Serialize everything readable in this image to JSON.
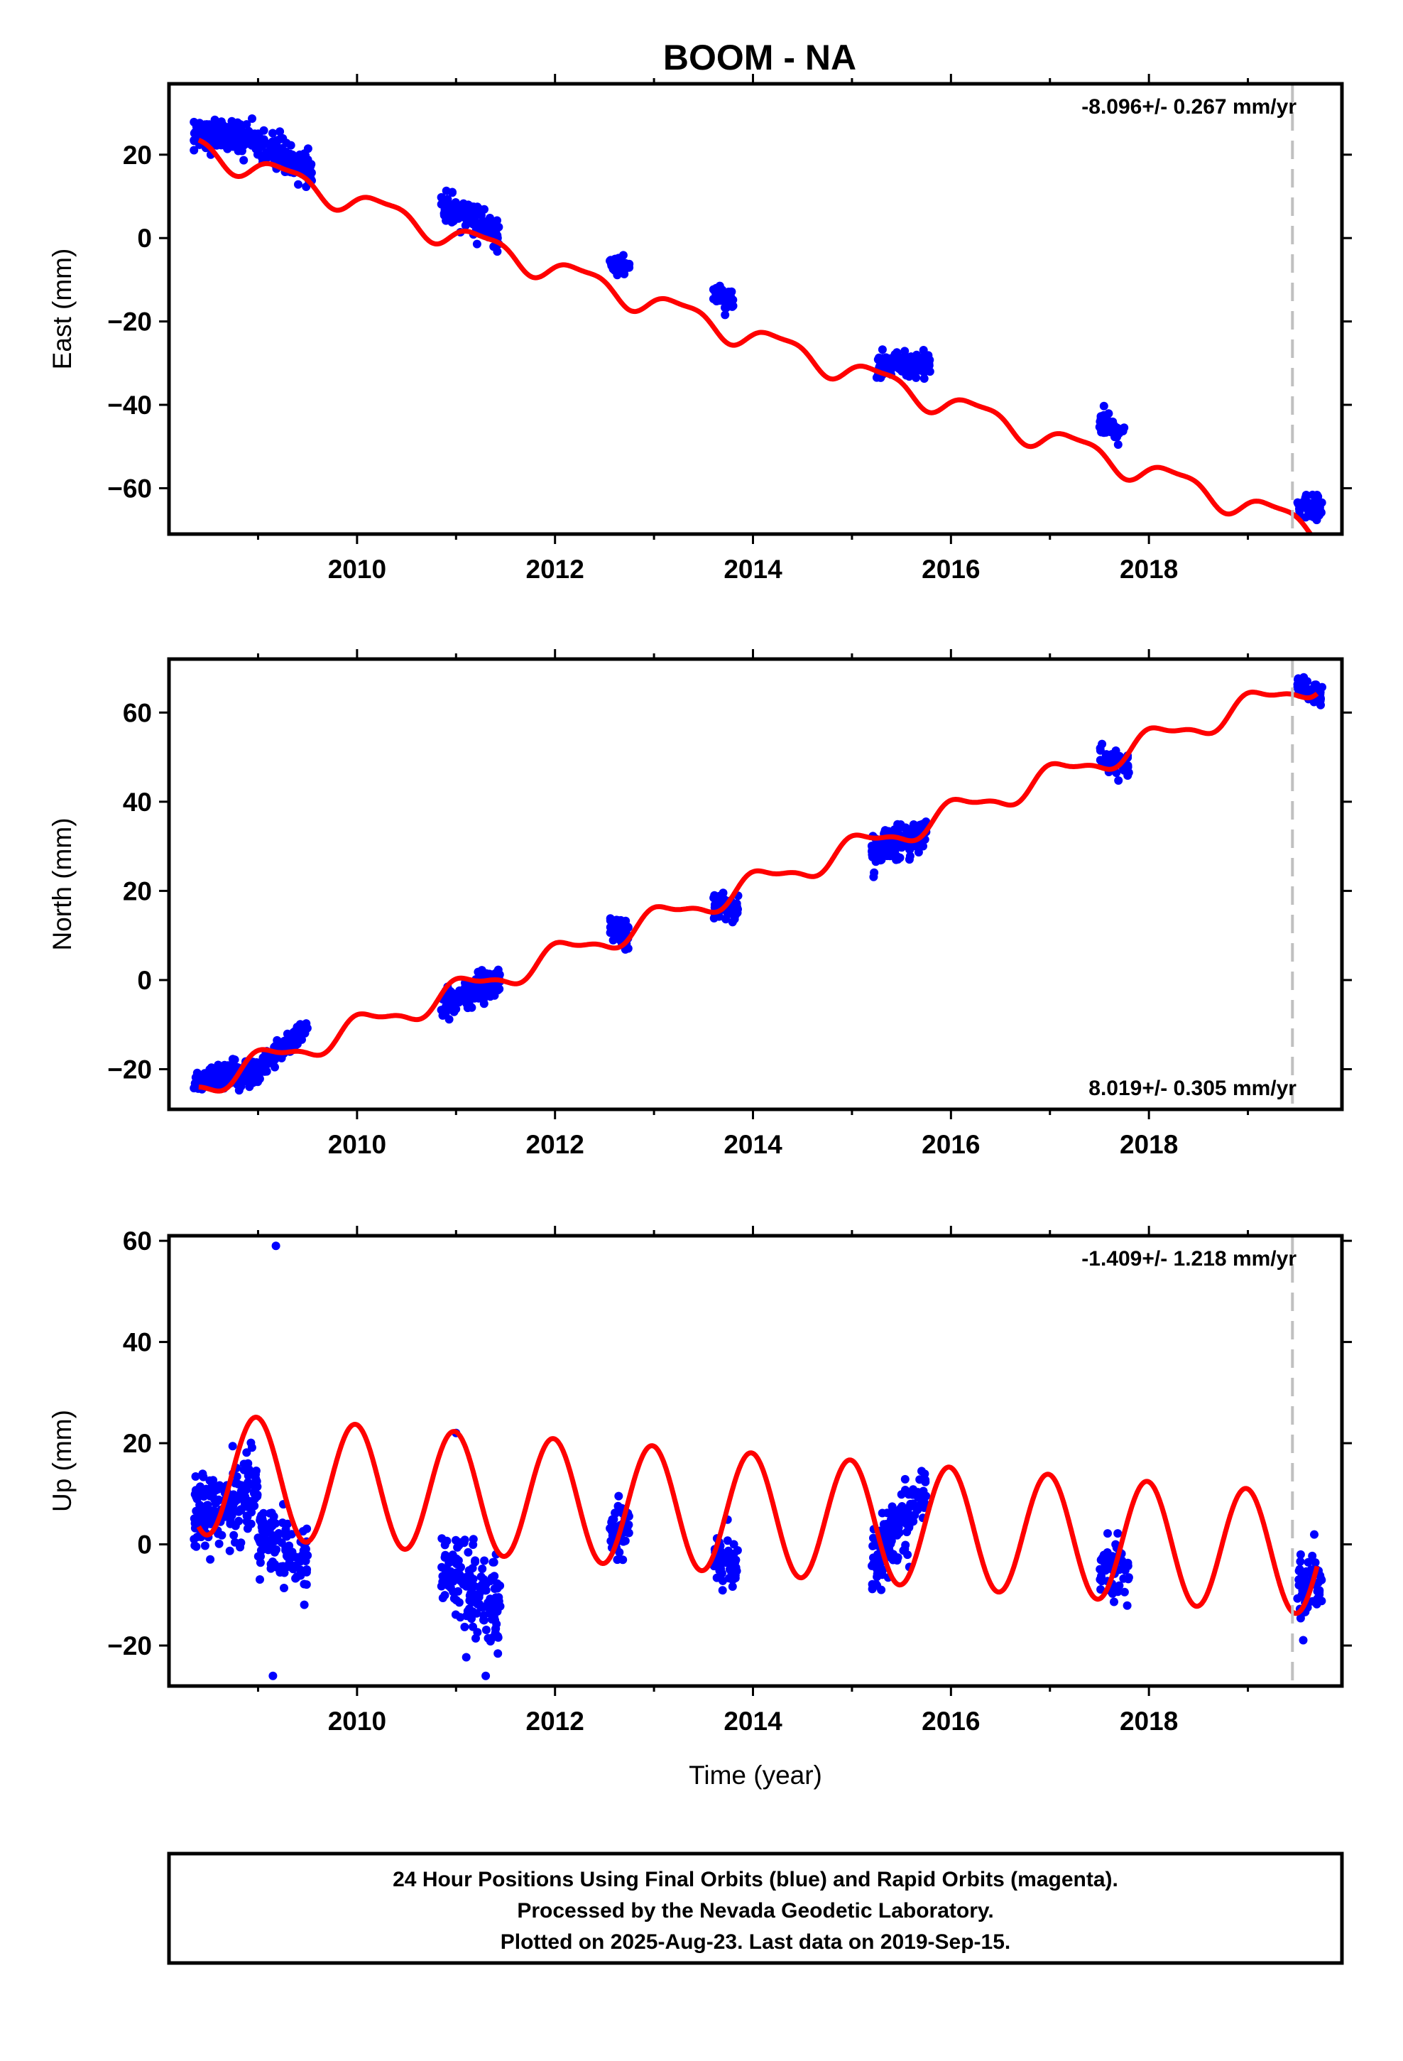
{
  "title": "BOOM - NA",
  "colors": {
    "final_orbits": "#0000ff",
    "model": "#ff0000",
    "frame": "#000000",
    "end_marker": "#c0c0c0"
  },
  "chart_data": [
    {
      "type": "scatter",
      "ylabel": "East (mm)",
      "xlabel": "",
      "xlim": [
        2008.1,
        2019.95
      ],
      "ylim": [
        -71,
        37
      ],
      "xticks": [
        2010,
        2012,
        2014,
        2016,
        2018
      ],
      "xtick_labels": [
        "2010",
        "2012",
        "2014",
        "2016",
        "2018"
      ],
      "yticks": [
        20,
        0,
        -20,
        -40,
        -60
      ],
      "ytick_labels": [
        "20",
        "0",
        "−20",
        "−40",
        "−60"
      ],
      "rate_text": "-8.096+/- 0.267 mm/yr",
      "rate_position": "top-right",
      "end_marker_x": 2019.45,
      "series": [
        {
          "kind": "points",
          "clusters": [
            {
              "x": [
                2008.35,
                2008.85
              ],
              "y_start": 24,
              "y_end": 25,
              "spread": 4,
              "n": 140
            },
            {
              "x": [
                2008.85,
                2009.25
              ],
              "y_start": 25,
              "y_end": 20,
              "spread": 4,
              "n": 100
            },
            {
              "x": [
                2009.25,
                2009.55
              ],
              "y_start": 19,
              "y_end": 16,
              "spread": 4,
              "n": 80
            },
            {
              "x": [
                2010.85,
                2011.45
              ],
              "y_start": 8,
              "y_end": 1,
              "spread": 4,
              "n": 120
            },
            {
              "x": [
                2012.55,
                2012.75
              ],
              "y_start": -6,
              "y_end": -7,
              "spread": 3,
              "n": 50
            },
            {
              "x": [
                2013.6,
                2013.8
              ],
              "y_start": -14,
              "y_end": -15,
              "spread": 3,
              "n": 50
            },
            {
              "x": [
                2015.25,
                2015.8
              ],
              "y_start": -31,
              "y_end": -30,
              "spread": 3,
              "n": 140
            },
            {
              "x": [
                2017.5,
                2017.75
              ],
              "y_start": -44,
              "y_end": -47,
              "spread": 3,
              "n": 50
            },
            {
              "x": [
                2019.5,
                2019.75
              ],
              "y_start": -64,
              "y_end": -65,
              "spread": 3,
              "n": 60
            }
          ]
        },
        {
          "kind": "model",
          "x0": 2008.4,
          "x1": 2019.7,
          "y_at_x0": 23.5,
          "rate": -8.096,
          "annual_amplitude": 2.8,
          "annual_phase": 2.4,
          "semiannual_amplitude": 0.9,
          "semiannual_phase": 0.0
        }
      ]
    },
    {
      "type": "scatter",
      "ylabel": "North (mm)",
      "xlabel": "",
      "xlim": [
        2008.1,
        2019.95
      ],
      "ylim": [
        -29,
        72
      ],
      "xticks": [
        2010,
        2012,
        2014,
        2016,
        2018
      ],
      "xtick_labels": [
        "2010",
        "2012",
        "2014",
        "2016",
        "2018"
      ],
      "yticks": [
        60,
        40,
        20,
        0,
        -20
      ],
      "ytick_labels": [
        "60",
        "40",
        "20",
        "0",
        "−20"
      ],
      "rate_text": "8.019+/- 0.305 mm/yr",
      "rate_position": "bottom-right",
      "end_marker_x": 2019.45,
      "series": [
        {
          "kind": "points",
          "clusters": [
            {
              "x": [
                2008.35,
                2009.0
              ],
              "y_start": -23,
              "y_end": -20,
              "spread": 3,
              "n": 180
            },
            {
              "x": [
                2009.0,
                2009.5
              ],
              "y_start": -20,
              "y_end": -11,
              "spread": 3,
              "n": 110
            },
            {
              "x": [
                2010.85,
                2011.45
              ],
              "y_start": -6,
              "y_end": 0,
              "spread": 4,
              "n": 140
            },
            {
              "x": [
                2012.55,
                2012.75
              ],
              "y_start": 12,
              "y_end": 10,
              "spread": 3,
              "n": 50
            },
            {
              "x": [
                2013.6,
                2013.85
              ],
              "y_start": 17,
              "y_end": 16,
              "spread": 3,
              "n": 60
            },
            {
              "x": [
                2015.2,
                2015.75
              ],
              "y_start": 29,
              "y_end": 33,
              "spread": 4,
              "n": 150
            },
            {
              "x": [
                2017.5,
                2017.8
              ],
              "y_start": 50,
              "y_end": 48,
              "spread": 3,
              "n": 50
            },
            {
              "x": [
                2019.5,
                2019.75
              ],
              "y_start": 66,
              "y_end": 63,
              "spread": 3,
              "n": 60
            }
          ]
        },
        {
          "kind": "model",
          "x0": 2008.4,
          "x1": 2019.7,
          "y_at_x0": -24,
          "rate": 8.019,
          "annual_amplitude": 2.6,
          "annual_phase": 3.6,
          "semiannual_amplitude": 0.9,
          "semiannual_phase": 1.0
        }
      ]
    },
    {
      "type": "scatter",
      "ylabel": "Up (mm)",
      "xlabel": "Time (year)",
      "xlim": [
        2008.1,
        2019.95
      ],
      "ylim": [
        -28,
        61
      ],
      "xticks": [
        2010,
        2012,
        2014,
        2016,
        2018
      ],
      "xtick_labels": [
        "2010",
        "2012",
        "2014",
        "2016",
        "2018"
      ],
      "yticks": [
        60,
        40,
        20,
        0,
        -20
      ],
      "ytick_labels": [
        "60",
        "40",
        "20",
        "0",
        "−20"
      ],
      "rate_text": "-1.409+/- 1.218 mm/yr",
      "rate_position": "top-right",
      "end_marker_x": 2019.45,
      "series": [
        {
          "kind": "points",
          "clusters": [
            {
              "x": [
                2008.35,
                2009.0
              ],
              "y_start": 6,
              "y_end": 10,
              "spread": 9,
              "n": 180
            },
            {
              "x": [
                2009.0,
                2009.5
              ],
              "y_start": 2,
              "y_end": -4,
              "spread": 8,
              "n": 110
            },
            {
              "x": [
                2010.85,
                2011.45
              ],
              "y_start": -5,
              "y_end": -14,
              "spread": 10,
              "n": 160
            },
            {
              "x": [
                2012.55,
                2012.75
              ],
              "y_start": 2,
              "y_end": 3,
              "spread": 6,
              "n": 50
            },
            {
              "x": [
                2013.6,
                2013.85
              ],
              "y_start": -3,
              "y_end": -4,
              "spread": 6,
              "n": 60
            },
            {
              "x": [
                2015.2,
                2015.75
              ],
              "y_start": -3,
              "y_end": 10,
              "spread": 7,
              "n": 160
            },
            {
              "x": [
                2017.5,
                2017.8
              ],
              "y_start": -4,
              "y_end": -5,
              "spread": 6,
              "n": 50
            },
            {
              "x": [
                2019.5,
                2019.75
              ],
              "y_start": -9,
              "y_end": -6,
              "spread": 7,
              "n": 60
            }
          ],
          "outliers": [
            {
              "x": 2009.18,
              "y": 59
            },
            {
              "x": 2011.0,
              "y": 22
            },
            {
              "x": 2009.15,
              "y": -26
            },
            {
              "x": 2011.3,
              "y": -26
            }
          ]
        },
        {
          "kind": "model",
          "x0": 2008.4,
          "x1": 2019.7,
          "y_at_x0": 3.5,
          "rate": -1.409,
          "annual_amplitude": 12,
          "annual_phase": 4.2,
          "semiannual_amplitude": 0,
          "semiannual_phase": 0
        }
      ]
    }
  ],
  "footer": {
    "lines": [
      "24 Hour Positions Using Final Orbits (blue) and Rapid Orbits (magenta).",
      "Processed by the Nevada Geodetic Laboratory.",
      "Plotted on 2025-Aug-23. Last data on 2019-Sep-15."
    ]
  }
}
